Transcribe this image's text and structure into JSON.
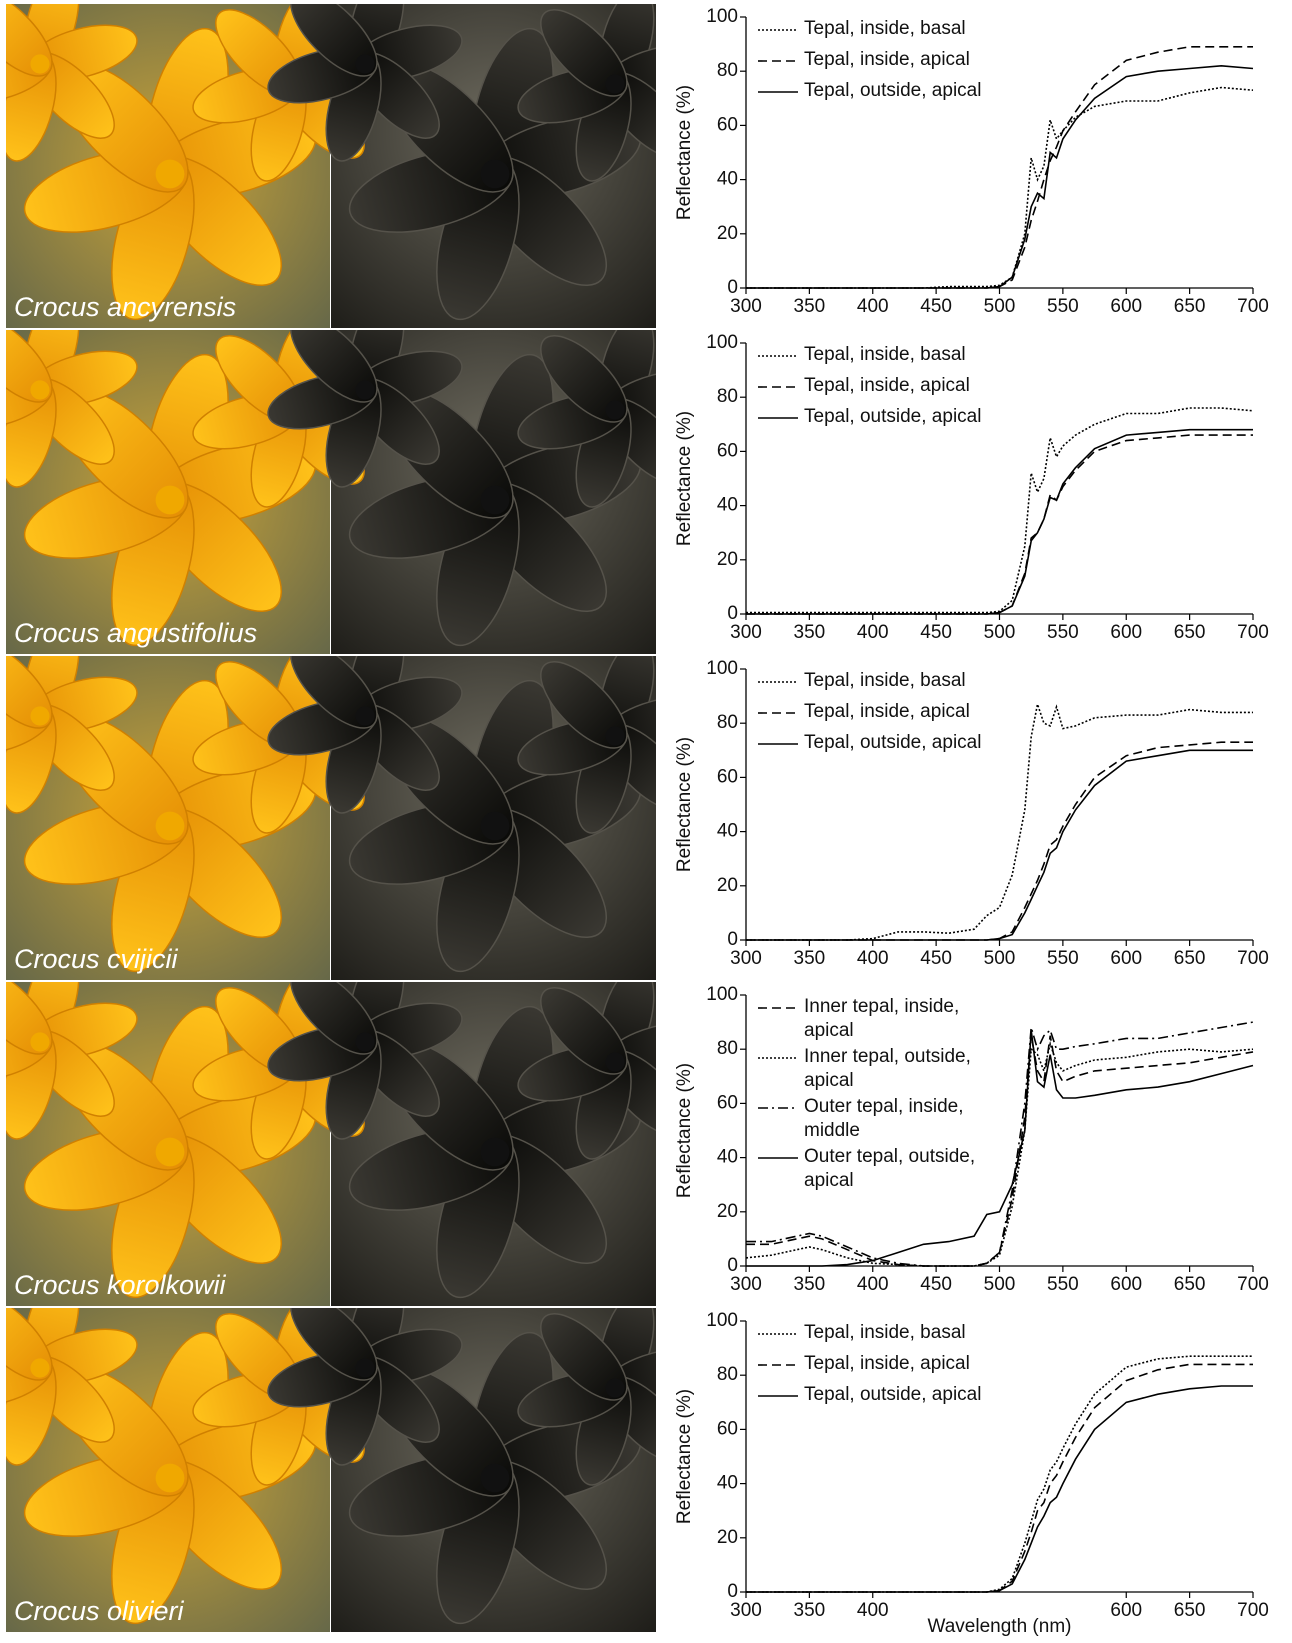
{
  "photo_labels": [
    "Crocus ancyrensis",
    "Crocus angustifolius",
    "Crocus cvijicii",
    "Crocus korolkowii",
    "Crocus olivieri"
  ],
  "chart_data": [
    {
      "type": "line",
      "ylabel": "Reflectance (%)",
      "xlim": [
        300,
        700
      ],
      "ylim": [
        0,
        100
      ],
      "xticks": [
        300,
        350,
        400,
        450,
        500,
        550,
        600,
        650,
        700
      ],
      "yticks": [
        0,
        20,
        40,
        60,
        80,
        100
      ],
      "x": [
        300,
        320,
        340,
        350,
        360,
        380,
        400,
        420,
        440,
        460,
        480,
        490,
        500,
        510,
        520,
        525,
        530,
        535,
        540,
        545,
        550,
        560,
        575,
        600,
        625,
        650,
        675,
        700
      ],
      "series": [
        {
          "name": "Tepal, inside, basal",
          "color": "#000000",
          "style": "dotted",
          "values": [
            0,
            0,
            0,
            0,
            0,
            0,
            0,
            0,
            0,
            0.5,
            0.5,
            0.5,
            1,
            4,
            20,
            48,
            40,
            45,
            62,
            55,
            58,
            63,
            67,
            69,
            69,
            72,
            74,
            73
          ]
        },
        {
          "name": "Tepal, inside, apical",
          "color": "#000000",
          "style": "dashed",
          "values": [
            0,
            0,
            0,
            0,
            0,
            0,
            0,
            0,
            0,
            0,
            0,
            0,
            0.5,
            3,
            15,
            25,
            32,
            40,
            47,
            52,
            58,
            65,
            75,
            84,
            87,
            89,
            89,
            89
          ]
        },
        {
          "name": "Tepal, outside, apical",
          "color": "#000000",
          "style": "solid",
          "values": [
            0,
            0,
            0,
            0,
            0,
            0,
            0,
            0,
            0,
            0,
            0,
            0,
            0.5,
            4,
            18,
            30,
            35,
            33,
            50,
            48,
            55,
            62,
            70,
            78,
            80,
            81,
            82,
            81
          ]
        }
      ]
    },
    {
      "type": "line",
      "ylabel": "Reflectance (%)",
      "xlim": [
        300,
        700
      ],
      "ylim": [
        0,
        100
      ],
      "xticks": [
        300,
        350,
        400,
        450,
        500,
        550,
        600,
        650,
        700
      ],
      "yticks": [
        0,
        20,
        40,
        60,
        80,
        100
      ],
      "x": [
        300,
        320,
        340,
        350,
        360,
        380,
        400,
        420,
        440,
        460,
        480,
        490,
        500,
        510,
        520,
        525,
        530,
        535,
        540,
        545,
        550,
        560,
        575,
        600,
        625,
        650,
        675,
        700
      ],
      "series": [
        {
          "name": "Tepal, inside, basal",
          "color": "#000000",
          "style": "dotted",
          "values": [
            0.5,
            0.5,
            0.5,
            0.5,
            0.5,
            0.5,
            0.5,
            0.5,
            0.5,
            0.5,
            0.5,
            0.5,
            1,
            5,
            25,
            52,
            45,
            50,
            65,
            58,
            62,
            66,
            70,
            74,
            74,
            76,
            76,
            75
          ]
        },
        {
          "name": "Tepal, inside, apical",
          "color": "#000000",
          "style": "dashed",
          "values": [
            0,
            0,
            0,
            0,
            0,
            0,
            0,
            0,
            0,
            0,
            0,
            0,
            0.5,
            3,
            15,
            28,
            30,
            35,
            44,
            42,
            47,
            53,
            60,
            64,
            65,
            66,
            66,
            66
          ]
        },
        {
          "name": "Tepal, outside, apical",
          "color": "#000000",
          "style": "solid",
          "values": [
            0,
            0,
            0,
            0,
            0,
            0,
            0,
            0,
            0,
            0,
            0,
            0,
            0.5,
            3,
            14,
            27,
            30,
            35,
            43,
            42,
            48,
            54,
            61,
            66,
            67,
            68,
            68,
            68
          ]
        }
      ]
    },
    {
      "type": "line",
      "ylabel": "Reflectance (%)",
      "xlim": [
        300,
        700
      ],
      "ylim": [
        0,
        100
      ],
      "xticks": [
        300,
        350,
        400,
        450,
        500,
        550,
        600,
        650,
        700
      ],
      "yticks": [
        0,
        20,
        40,
        60,
        80,
        100
      ],
      "x": [
        300,
        320,
        340,
        350,
        360,
        380,
        400,
        420,
        440,
        460,
        480,
        490,
        500,
        510,
        520,
        525,
        530,
        535,
        540,
        545,
        550,
        560,
        575,
        600,
        625,
        650,
        675,
        700
      ],
      "series": [
        {
          "name": "Tepal, inside, basal",
          "color": "#000000",
          "style": "dotted",
          "values": [
            0,
            0,
            0,
            0,
            0,
            0,
            0.5,
            3,
            3,
            2.5,
            4,
            9,
            12,
            24,
            48,
            75,
            87,
            80,
            79,
            86,
            78,
            79,
            82,
            83,
            83,
            85,
            84,
            84
          ]
        },
        {
          "name": "Tepal, inside, apical",
          "color": "#000000",
          "style": "dashed",
          "values": [
            0,
            0,
            0,
            0,
            0,
            0,
            0,
            0,
            0,
            0,
            0,
            0,
            0.5,
            3,
            12,
            17,
            22,
            28,
            35,
            37,
            42,
            50,
            60,
            68,
            71,
            72,
            73,
            73
          ]
        },
        {
          "name": "Tepal, outside, apical",
          "color": "#000000",
          "style": "solid",
          "values": [
            0,
            0,
            0,
            0,
            0,
            0,
            0,
            0,
            0,
            0,
            0,
            0,
            0.5,
            2,
            10,
            15,
            20,
            25,
            32,
            34,
            40,
            48,
            57,
            66,
            68,
            70,
            70,
            70
          ]
        }
      ]
    },
    {
      "type": "line",
      "ylabel": "Reflectance (%)",
      "xlim": [
        300,
        700
      ],
      "ylim": [
        0,
        100
      ],
      "xticks": [
        300,
        350,
        400,
        450,
        500,
        550,
        600,
        650,
        700
      ],
      "yticks": [
        0,
        20,
        40,
        60,
        80,
        100
      ],
      "x": [
        300,
        320,
        340,
        350,
        360,
        380,
        400,
        420,
        440,
        460,
        480,
        490,
        500,
        510,
        520,
        525,
        530,
        535,
        540,
        545,
        550,
        560,
        575,
        600,
        625,
        650,
        675,
        700
      ],
      "series": [
        {
          "name": "Inner tepal, inside, apical",
          "color": "#000000",
          "style": "dashed",
          "values": [
            8,
            8,
            10,
            11,
            10,
            6,
            2,
            0.5,
            0,
            0,
            0,
            1,
            5,
            25,
            55,
            85,
            72,
            68,
            85,
            72,
            68,
            70,
            72,
            73,
            74,
            75,
            77,
            79
          ]
        },
        {
          "name": "Inner tepal, outside, apical",
          "color": "#000000",
          "style": "dotted",
          "values": [
            3,
            4,
            6,
            7,
            6,
            3,
            1,
            0.5,
            0,
            0,
            0,
            1,
            4,
            22,
            50,
            80,
            78,
            72,
            82,
            75,
            72,
            74,
            76,
            77,
            79,
            80,
            79,
            80
          ]
        },
        {
          "name": "Outer tepal, inside, middle",
          "color": "#000000",
          "style": "dashdot",
          "values": [
            9,
            9,
            11,
            12,
            11,
            7,
            3,
            1,
            0,
            0,
            0,
            1,
            5,
            28,
            60,
            88,
            80,
            85,
            87,
            80,
            80,
            81,
            82,
            84,
            84,
            86,
            88,
            90
          ]
        },
        {
          "name": "Outer tepal, outside, apical",
          "color": "#000000",
          "style": "solid",
          "values": [
            0,
            0,
            0,
            0,
            0,
            0.5,
            2,
            5,
            8,
            9,
            11,
            19,
            20,
            30,
            50,
            87,
            68,
            66,
            78,
            65,
            62,
            62,
            63,
            65,
            66,
            68,
            71,
            74
          ]
        }
      ]
    },
    {
      "type": "line",
      "ylabel": "Reflectance (%)",
      "xlabel": "Wavelength (nm)",
      "xlim": [
        300,
        700
      ],
      "ylim": [
        0,
        100
      ],
      "xticks": [
        300,
        350,
        400,
        600,
        650,
        700
      ],
      "yticks": [
        0,
        20,
        40,
        60,
        80,
        100
      ],
      "x": [
        300,
        320,
        340,
        350,
        360,
        380,
        400,
        420,
        440,
        460,
        480,
        490,
        500,
        510,
        520,
        525,
        530,
        535,
        540,
        545,
        550,
        560,
        575,
        600,
        625,
        650,
        675,
        700
      ],
      "series": [
        {
          "name": "Tepal, inside, basal",
          "color": "#000000",
          "style": "dotted",
          "values": [
            0,
            0,
            0,
            0,
            0,
            0,
            0,
            0,
            0,
            0,
            0,
            0,
            1,
            5,
            18,
            26,
            34,
            38,
            45,
            48,
            53,
            62,
            73,
            83,
            86,
            87,
            87,
            87
          ]
        },
        {
          "name": "Tepal, inside, apical",
          "color": "#000000",
          "style": "dashed",
          "values": [
            0,
            0,
            0,
            0,
            0,
            0,
            0,
            0,
            0,
            0,
            0,
            0,
            0.5,
            4,
            15,
            22,
            30,
            33,
            40,
            43,
            48,
            57,
            68,
            78,
            82,
            84,
            84,
            84
          ]
        },
        {
          "name": "Tepal, outside, apical",
          "color": "#000000",
          "style": "solid",
          "values": [
            0,
            0,
            0,
            0,
            0,
            0,
            0,
            0,
            0,
            0,
            0,
            0,
            0.5,
            3,
            12,
            18,
            24,
            28,
            33,
            35,
            40,
            49,
            60,
            70,
            73,
            75,
            76,
            76
          ]
        }
      ]
    }
  ]
}
